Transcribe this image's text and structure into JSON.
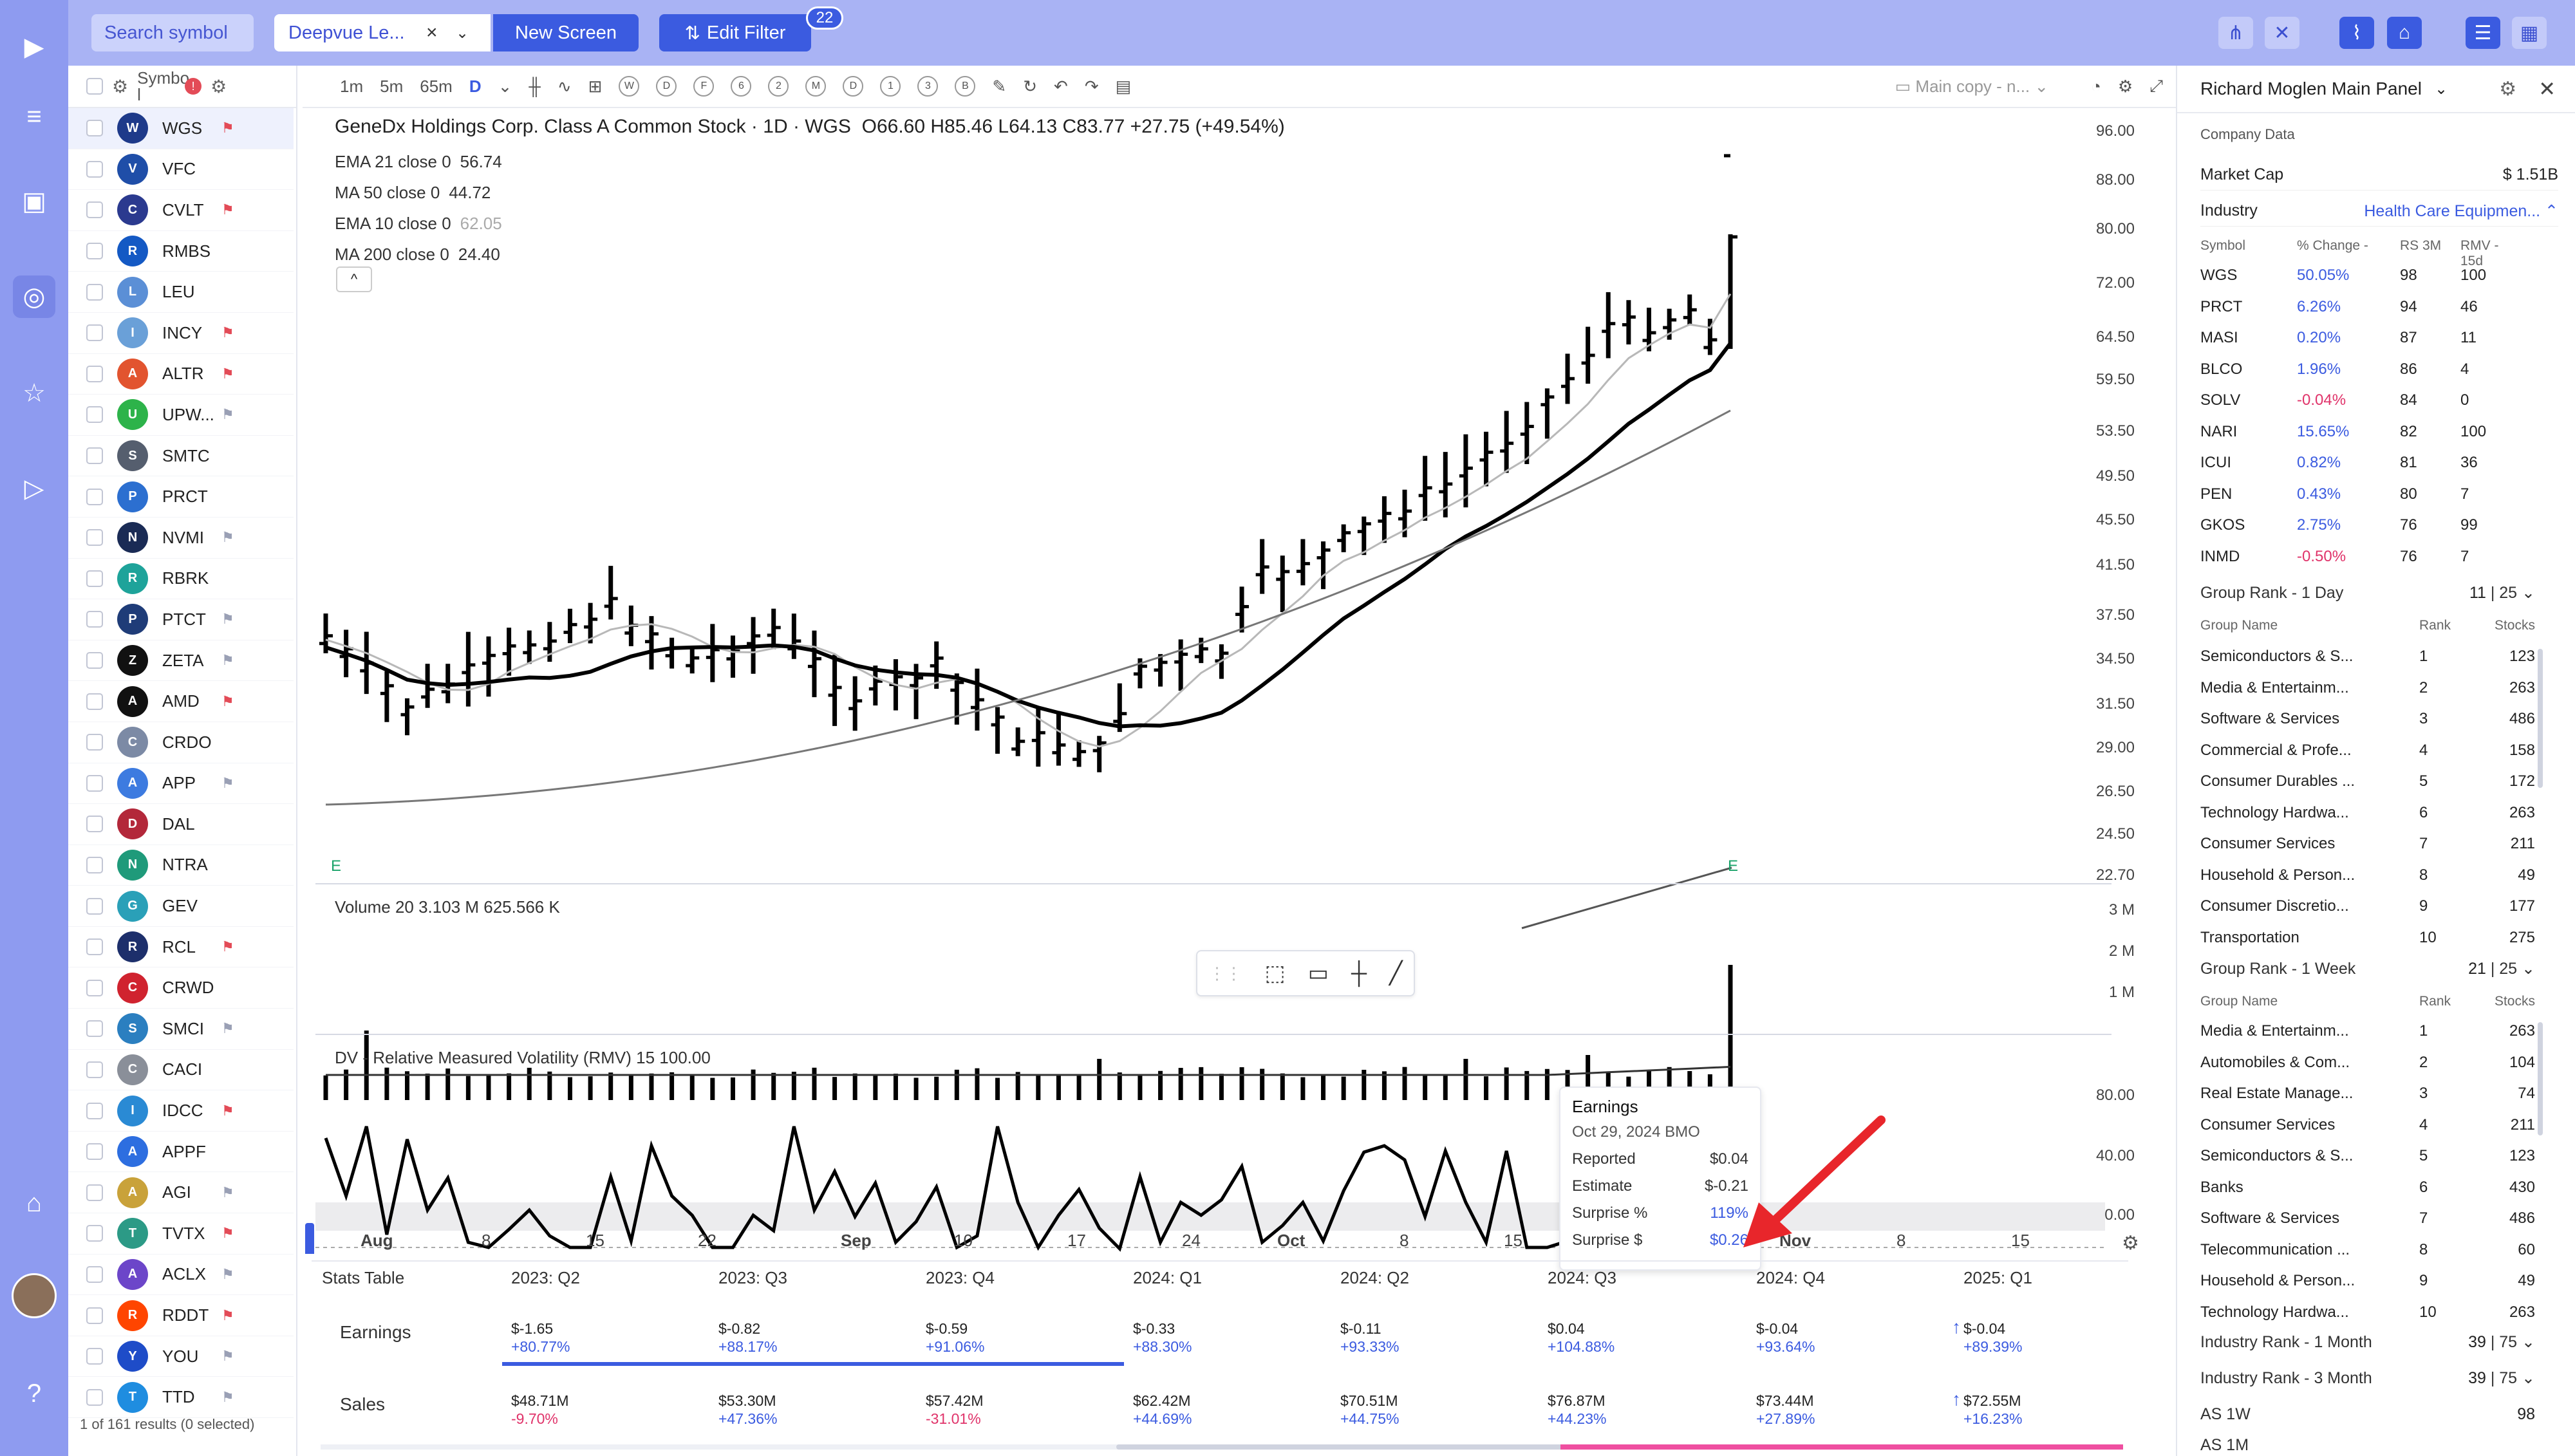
{
  "toolbar": {
    "search_placeholder": "Search symbol",
    "screen_name": "Deepvue Le...",
    "new_screen": "New Screen",
    "edit_filter": "Edit Filter",
    "filter_count": "22"
  },
  "watchlist": {
    "header_label": "Symbo l",
    "header_badge": "!",
    "footer": "1 of 161 results (0 selected)",
    "rows": [
      {
        "ticker": "WGS",
        "color": "#1e3a8a",
        "flag": "red"
      },
      {
        "ticker": "VFC",
        "color": "#1f4ea8",
        "flag": "none"
      },
      {
        "ticker": "CVLT",
        "color": "#2b3a8f",
        "flag": "red"
      },
      {
        "ticker": "RMBS",
        "color": "#1459c4",
        "flag": "none"
      },
      {
        "ticker": "LEU",
        "color": "#5b8fd6",
        "flag": "none"
      },
      {
        "ticker": "INCY",
        "color": "#6aa0d8",
        "flag": "red"
      },
      {
        "ticker": "ALTR",
        "color": "#e2542f",
        "flag": "red"
      },
      {
        "ticker": "UPW...",
        "color": "#2db34a",
        "flag": "grey"
      },
      {
        "ticker": "SMTC",
        "color": "#555e6e",
        "flag": "none"
      },
      {
        "ticker": "PRCT",
        "color": "#2c6fd0",
        "flag": "none"
      },
      {
        "ticker": "NVMI",
        "color": "#1a2b55",
        "flag": "grey"
      },
      {
        "ticker": "RBRK",
        "color": "#1ea39a",
        "flag": "none"
      },
      {
        "ticker": "PTCT",
        "color": "#1f3c78",
        "flag": "grey"
      },
      {
        "ticker": "ZETA",
        "color": "#111111",
        "flag": "grey"
      },
      {
        "ticker": "AMD",
        "color": "#111111",
        "flag": "red"
      },
      {
        "ticker": "CRDO",
        "color": "#7c8aa5",
        "flag": "none"
      },
      {
        "ticker": "APP",
        "color": "#3d7be0",
        "flag": "grey"
      },
      {
        "ticker": "DAL",
        "color": "#b3283a",
        "flag": "none"
      },
      {
        "ticker": "NTRA",
        "color": "#1f9a7a",
        "flag": "none"
      },
      {
        "ticker": "GEV",
        "color": "#2aa0b8",
        "flag": "none"
      },
      {
        "ticker": "RCL",
        "color": "#1d2f6b",
        "flag": "red"
      },
      {
        "ticker": "CRWD",
        "color": "#d0232f",
        "flag": "none"
      },
      {
        "ticker": "SMCI",
        "color": "#2b7fc0",
        "flag": "grey"
      },
      {
        "ticker": "CACI",
        "color": "#8a8f99",
        "flag": "none"
      },
      {
        "ticker": "IDCC",
        "color": "#2a8ad4",
        "flag": "red"
      },
      {
        "ticker": "APPF",
        "color": "#2d6ee0",
        "flag": "none"
      },
      {
        "ticker": "AGI",
        "color": "#c9a23a",
        "flag": "grey"
      },
      {
        "ticker": "TVTX",
        "color": "#2c9a86",
        "flag": "red"
      },
      {
        "ticker": "ACLX",
        "color": "#6c46c9",
        "flag": "grey"
      },
      {
        "ticker": "RDDT",
        "color": "#ff4500",
        "flag": "red"
      },
      {
        "ticker": "YOU",
        "color": "#1e4cc8",
        "flag": "grey"
      },
      {
        "ticker": "TTD",
        "color": "#1f8de0",
        "flag": "grey"
      }
    ]
  },
  "chart_toolbar": {
    "intervals": [
      "1m",
      "5m",
      "65m",
      "D"
    ],
    "ranges": [
      "W",
      "D",
      "F",
      "6",
      "2",
      "M",
      "D",
      "1",
      "3",
      "B"
    ],
    "layout_name": "Main copy - n..."
  },
  "chart": {
    "title": "GeneDx Holdings Corp. Class A Common Stock · 1D · WGS",
    "ohlc": "O66.60  H85.46  L64.13  C83.77  +27.75 (+49.54%)",
    "studies": [
      {
        "name": "EMA 21 close 0",
        "value": "56.74"
      },
      {
        "name": "MA 50 close 0",
        "value": "44.72"
      },
      {
        "name": "EMA 10 close 0",
        "value": "62.05"
      },
      {
        "name": "MA 200 close 0",
        "value": "24.40"
      }
    ],
    "collapse": "^",
    "price_axis": [
      "96.00",
      "88.00",
      "80.00",
      "72.00",
      "64.50",
      "59.50",
      "53.50",
      "49.50",
      "45.50",
      "41.50",
      "37.50",
      "34.50",
      "31.50",
      "29.00",
      "26.50",
      "24.50",
      "22.70"
    ],
    "earnings_marks": [
      "E",
      "E"
    ],
    "volume_title": "Volume 20  3.103 M  625.566 K",
    "volume_axis": [
      "3 M",
      "2 M",
      "1 M"
    ],
    "rmv_title": "DV - Relative Measured Volatility (RMV) 15  100.00",
    "rmv_axis": [
      "80.00",
      "40.00",
      "0.00"
    ],
    "time_axis": [
      "Aug",
      "8",
      "15",
      "22",
      "Sep",
      "10",
      "17",
      "24",
      "Oct",
      "8",
      "15",
      "Nov",
      "8",
      "15"
    ]
  },
  "tooltip": {
    "title": "Earnings",
    "date": "Oct 29, 2024  BMO",
    "rows": [
      {
        "k": "Reported",
        "v": "$0.04"
      },
      {
        "k": "Estimate",
        "v": "$-0.21"
      },
      {
        "k": "Surprise %",
        "v": "119%"
      },
      {
        "k": "Surprise $",
        "v": "$0.26"
      }
    ]
  },
  "stats_table": {
    "title": "Stats Table",
    "quarters": [
      "2023: Q2",
      "2023: Q3",
      "2023: Q4",
      "2024: Q1",
      "2024: Q2",
      "2024: Q3",
      "2024: Q4",
      "2025: Q1"
    ],
    "earnings_label": "Earnings",
    "earnings": [
      {
        "v": "$-1.65",
        "c": "+80.77%"
      },
      {
        "v": "$-0.82",
        "c": "+88.17%"
      },
      {
        "v": "$-0.59",
        "c": "+91.06%"
      },
      {
        "v": "$-0.33",
        "c": "+88.30%"
      },
      {
        "v": "$-0.11",
        "c": "+93.33%"
      },
      {
        "v": "$0.04",
        "c": "+104.88%"
      },
      {
        "v": "$-0.04",
        "c": "+93.64%"
      },
      {
        "v": "$-0.04",
        "c": "+89.39%"
      }
    ],
    "sales_label": "Sales",
    "sales": [
      {
        "v": "$48.71M",
        "c": "-9.70%",
        "neg": true
      },
      {
        "v": "$53.30M",
        "c": "+47.36%",
        "neg": false
      },
      {
        "v": "$57.42M",
        "c": "-31.01%",
        "neg": true
      },
      {
        "v": "$62.42M",
        "c": "+44.69%",
        "neg": false
      },
      {
        "v": "$70.51M",
        "c": "+44.75%",
        "neg": false
      },
      {
        "v": "$76.87M",
        "c": "+44.23%",
        "neg": false
      },
      {
        "v": "$73.44M",
        "c": "+27.89%",
        "neg": false
      },
      {
        "v": "$72.55M",
        "c": "+16.23%",
        "neg": false
      }
    ]
  },
  "right_panel": {
    "title": "Richard Moglen Main Panel",
    "section": "Company Data",
    "market_cap_label": "Market Cap",
    "market_cap": "$ 1.51B",
    "industry_label": "Industry",
    "industry": "Health Care Equipmen...",
    "peer_headers": [
      "Symbol",
      "% Change -",
      "RS 3M",
      "RMV - 15d"
    ],
    "peers": [
      {
        "s": "WGS",
        "p": "50.05%",
        "rs": "98",
        "rmv": "100",
        "neg": false
      },
      {
        "s": "PRCT",
        "p": "6.26%",
        "rs": "94",
        "rmv": "46",
        "neg": false
      },
      {
        "s": "MASI",
        "p": "0.20%",
        "rs": "87",
        "rmv": "11",
        "neg": false
      },
      {
        "s": "BLCO",
        "p": "1.96%",
        "rs": "86",
        "rmv": "4",
        "neg": false
      },
      {
        "s": "SOLV",
        "p": "-0.04%",
        "rs": "84",
        "rmv": "0",
        "neg": true
      },
      {
        "s": "NARI",
        "p": "15.65%",
        "rs": "82",
        "rmv": "100",
        "neg": false
      },
      {
        "s": "ICUI",
        "p": "0.82%",
        "rs": "81",
        "rmv": "36",
        "neg": false
      },
      {
        "s": "PEN",
        "p": "0.43%",
        "rs": "80",
        "rmv": "7",
        "neg": false
      },
      {
        "s": "GKOS",
        "p": "2.75%",
        "rs": "76",
        "rmv": "99",
        "neg": false
      },
      {
        "s": "INMD",
        "p": "-0.50%",
        "rs": "76",
        "rmv": "7",
        "neg": true
      }
    ],
    "gr1d_label": "Group Rank - 1 Day",
    "gr1d_val": "11",
    "gr1d_of": "25",
    "group_headers": [
      "Group Name",
      "Rank",
      "Stocks"
    ],
    "gr1d": [
      {
        "n": "Semiconductors & S...",
        "r": "1",
        "s": "123"
      },
      {
        "n": "Media & Entertainm...",
        "r": "2",
        "s": "263"
      },
      {
        "n": "Software & Services",
        "r": "3",
        "s": "486"
      },
      {
        "n": "Commercial & Profe...",
        "r": "4",
        "s": "158"
      },
      {
        "n": "Consumer Durables ...",
        "r": "5",
        "s": "172"
      },
      {
        "n": "Technology Hardwa...",
        "r": "6",
        "s": "263"
      },
      {
        "n": "Consumer Services",
        "r": "7",
        "s": "211"
      },
      {
        "n": "Household & Person...",
        "r": "8",
        "s": "49"
      },
      {
        "n": "Consumer Discretio...",
        "r": "9",
        "s": "177"
      },
      {
        "n": "Transportation",
        "r": "10",
        "s": "275"
      }
    ],
    "gr1w_label": "Group Rank - 1 Week",
    "gr1w_val": "21",
    "gr1w_of": "25",
    "gr1w": [
      {
        "n": "Media & Entertainm...",
        "r": "1",
        "s": "263"
      },
      {
        "n": "Automobiles & Com...",
        "r": "2",
        "s": "104"
      },
      {
        "n": "Real Estate Manage...",
        "r": "3",
        "s": "74"
      },
      {
        "n": "Consumer Services",
        "r": "4",
        "s": "211"
      },
      {
        "n": "Semiconductors & S...",
        "r": "5",
        "s": "123"
      },
      {
        "n": "Banks",
        "r": "6",
        "s": "430"
      },
      {
        "n": "Software & Services",
        "r": "7",
        "s": "486"
      },
      {
        "n": "Telecommunication ...",
        "r": "8",
        "s": "60"
      },
      {
        "n": "Household & Person...",
        "r": "9",
        "s": "49"
      },
      {
        "n": "Technology Hardwa...",
        "r": "10",
        "s": "263"
      }
    ],
    "ir1m_label": "Industry Rank - 1 Month",
    "ir1m_val": "39",
    "ir1m_of": "75",
    "ir3m_label": "Industry Rank - 3 Month",
    "ir3m_val": "39",
    "ir3m_of": "75",
    "as1w_label": "AS 1W",
    "as1w_val": "98",
    "as1m_label": "AS 1M"
  },
  "colors": {
    "accent": "#3b5be0",
    "topbar": "#a9b3f4",
    "sidebar": "#8e9bf0",
    "negative": "#e0336a",
    "earnings": "#1aa36a"
  }
}
